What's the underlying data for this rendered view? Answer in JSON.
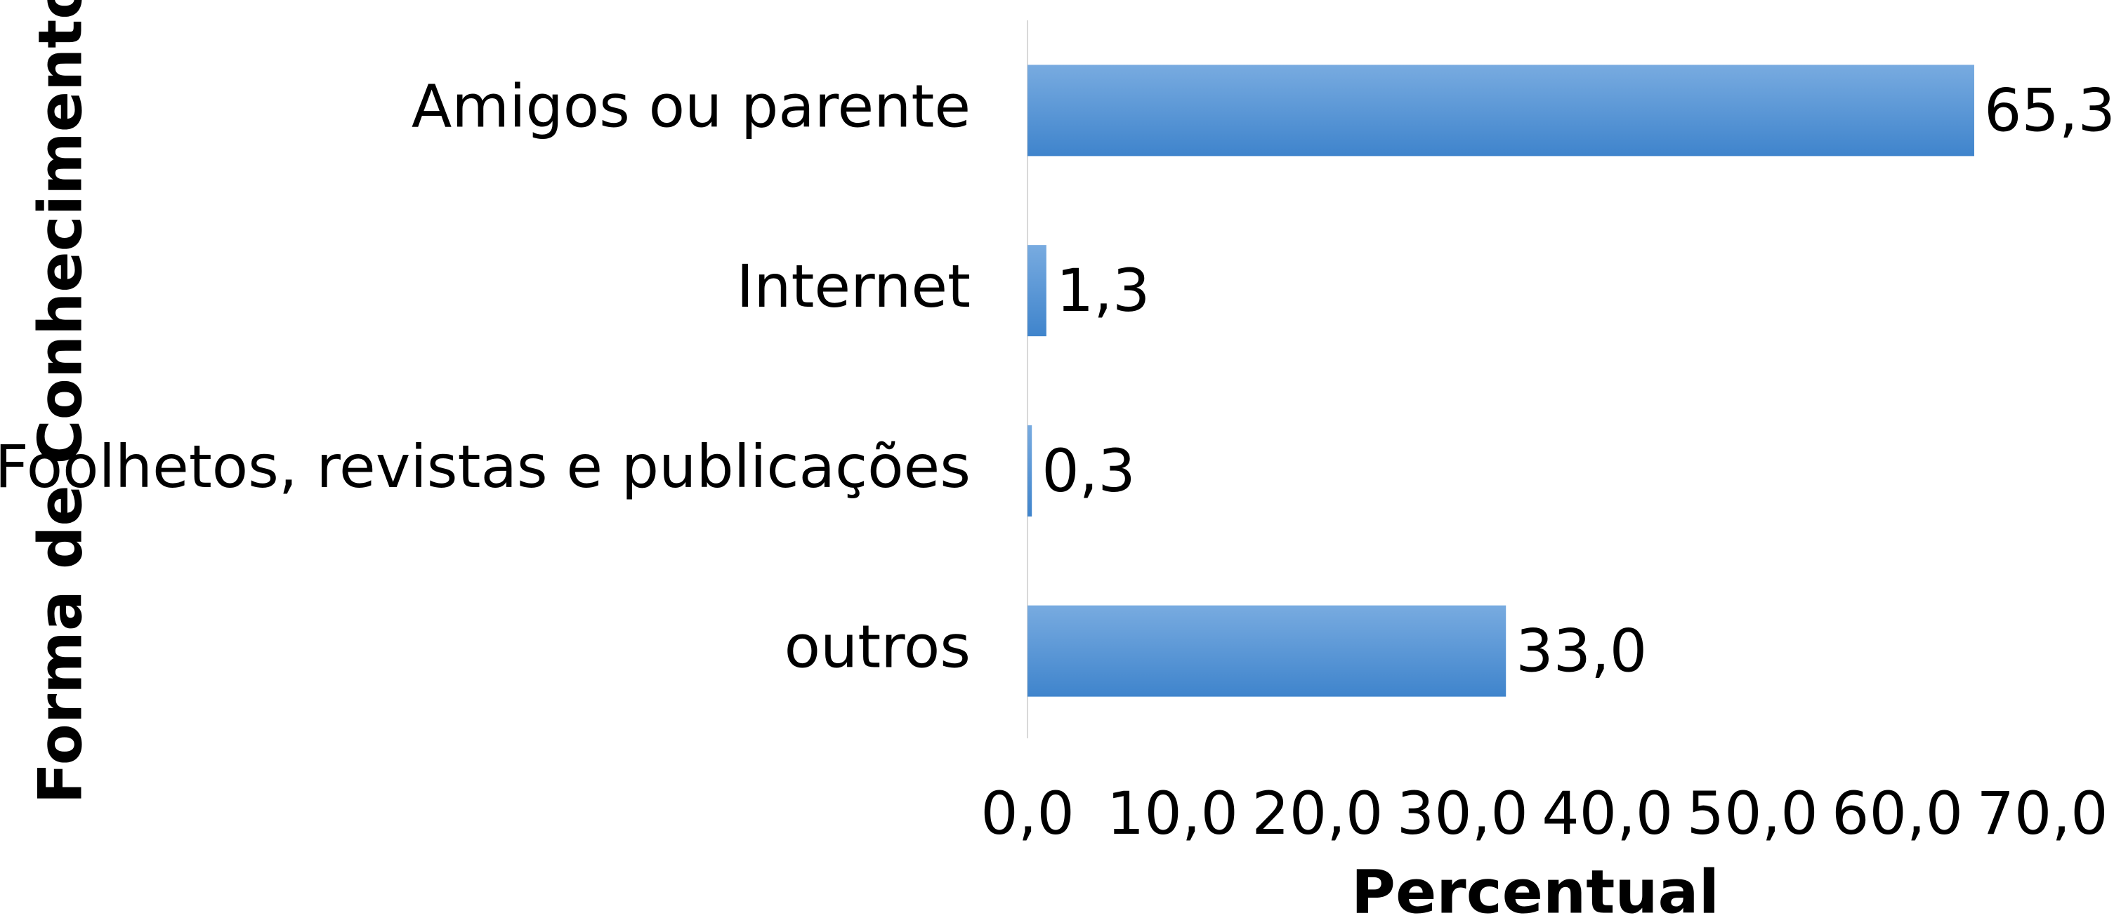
{
  "chart_data": {
    "type": "bar",
    "orientation": "horizontal",
    "categories": [
      "Amigos ou parente",
      "Internet",
      "Foolhetos, revistas e publicações",
      "outros"
    ],
    "values": [
      65.3,
      1.3,
      0.3,
      33.0
    ],
    "value_labels": [
      "65,3",
      "1,3",
      "0,3",
      "33,0"
    ],
    "color": "#4a8ed4",
    "xlim": [
      0,
      70
    ],
    "xticks": [
      {
        "value": 0,
        "label": "0,0"
      },
      {
        "value": 10,
        "label": "10,0"
      },
      {
        "value": 20,
        "label": "20,0"
      },
      {
        "value": 30,
        "label": "30,0"
      },
      {
        "value": 40,
        "label": "40,0"
      },
      {
        "value": 50,
        "label": "50,0"
      },
      {
        "value": 60,
        "label": "60,0"
      },
      {
        "value": 70,
        "label": "70,0"
      }
    ],
    "x_label": "Percentual",
    "y_label": "Forma de Conhecimento",
    "grid": false
  }
}
